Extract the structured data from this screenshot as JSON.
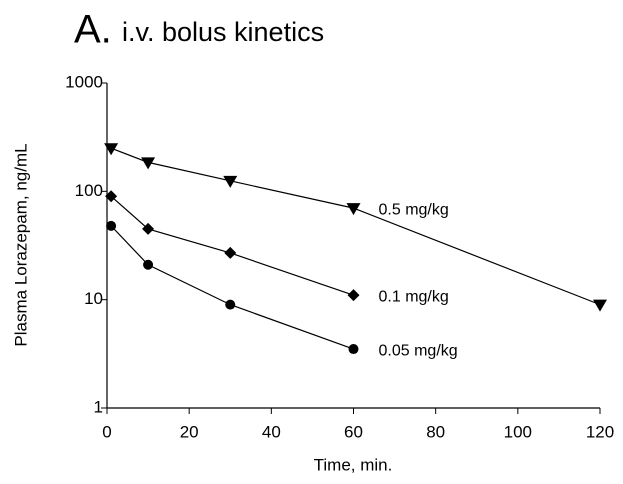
{
  "chart_data": {
    "type": "line",
    "panel_label": "A.",
    "title": "i.v. bolus kinetics",
    "xlabel": "Time, min.",
    "ylabel": "Plasma Lorazepam, ng/mL",
    "xlim": [
      0,
      120
    ],
    "xticks": [
      0,
      20,
      40,
      60,
      80,
      100,
      120
    ],
    "ylim": [
      1,
      1000
    ],
    "yticks": [
      1,
      10,
      100,
      1000
    ],
    "log_y": true,
    "series": [
      {
        "name": "0.5 mg/kg",
        "color": "#000000",
        "marker": "triangle-down",
        "x": [
          1,
          10,
          30,
          60,
          120
        ],
        "values": [
          250,
          185,
          125,
          70,
          9
        ]
      },
      {
        "name": "0.1 mg/kg",
        "color": "#000000",
        "marker": "diamond",
        "x": [
          1,
          10,
          30,
          60
        ],
        "values": [
          90,
          45,
          27,
          11
        ]
      },
      {
        "name": "0.05 mg/kg",
        "color": "#000000",
        "marker": "circle",
        "x": [
          1,
          10,
          30,
          60
        ],
        "values": [
          48,
          21,
          9,
          3.5
        ]
      }
    ]
  }
}
